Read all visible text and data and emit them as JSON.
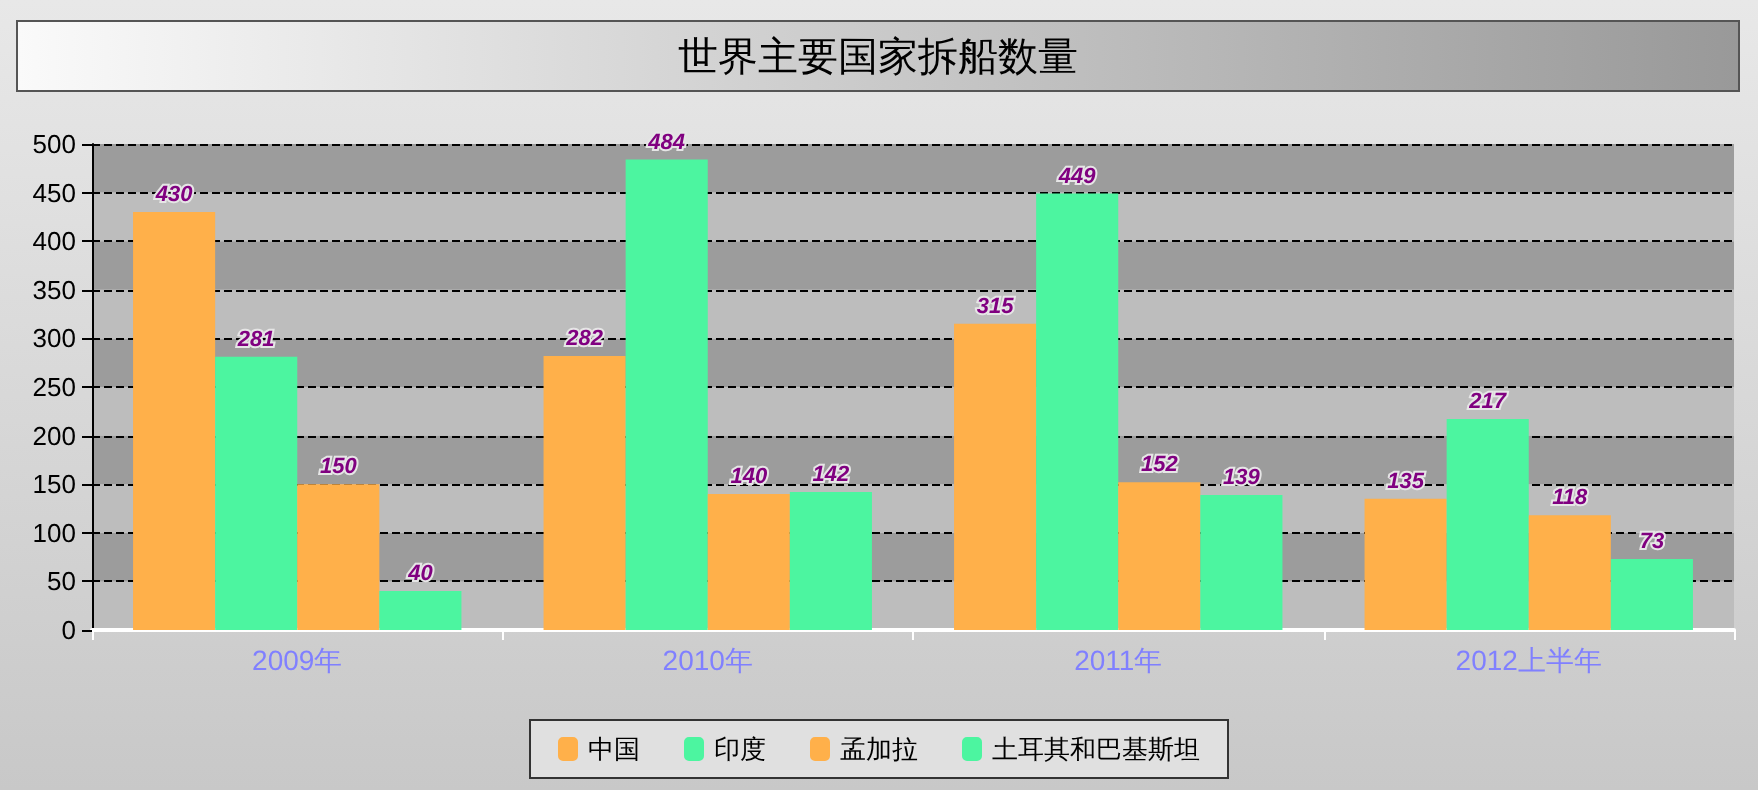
{
  "chart_data": {
    "type": "bar",
    "title": "世界主要国家拆船数量",
    "categories": [
      "2009年",
      "2010年",
      "2011年",
      "2012上半年"
    ],
    "series": [
      {
        "name": "中国",
        "color": "#ffb04a",
        "values": [
          430,
          282,
          315,
          135
        ]
      },
      {
        "name": "印度",
        "color": "#4cf5a0",
        "values": [
          281,
          484,
          449,
          217
        ]
      },
      {
        "name": "孟加拉",
        "color": "#ffb04a",
        "values": [
          150,
          140,
          152,
          118
        ]
      },
      {
        "name": "土耳其和巴基斯坦",
        "color": "#4cf5a0",
        "values": [
          40,
          142,
          139,
          73
        ]
      }
    ],
    "ylim": [
      0,
      500
    ],
    "yticks": [
      0,
      50,
      100,
      150,
      200,
      250,
      300,
      350,
      400,
      450,
      500
    ],
    "grid": "y",
    "legend": "bottom",
    "data_labels": true
  }
}
